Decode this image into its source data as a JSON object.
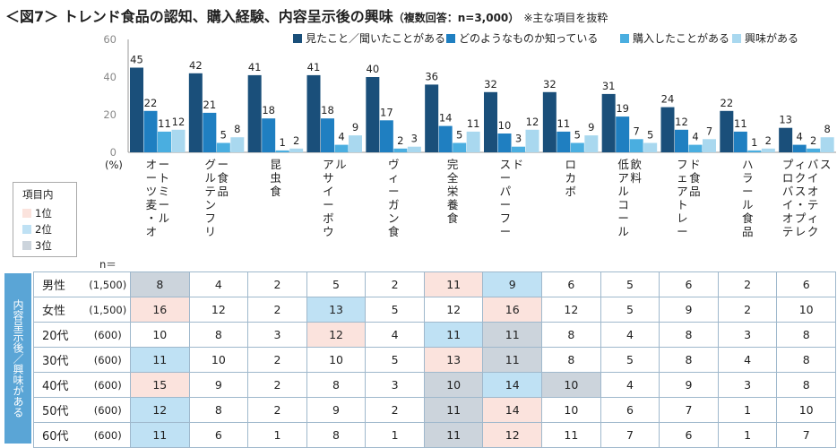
{
  "title": {
    "main": "＜図7＞ トレンド食品の認知、購入経験、内容呈示後の興味",
    "sub": "（複数回答：n=3,000）",
    "note": "※主な項目を抜粋"
  },
  "chart_data": {
    "type": "bar",
    "ylim": [
      0,
      60
    ],
    "yticks": [
      0,
      20,
      40,
      60
    ],
    "ylabel": "(%)",
    "grid": false,
    "legend_position": "top-right",
    "categories": [
      "オーツ麦・オートミール",
      "グルテンフリー食品",
      "昆虫食",
      "アサイーボウル",
      "ヴィーガン食",
      "完全栄養食",
      "スーパーフード",
      "ロカボ",
      "低アルコール飲料",
      "フェアトレード食品",
      "ハラール食品",
      "プロバイオティクス・プレバイオティクス"
    ],
    "series": [
      {
        "name": "見たこと／聞いたことがある",
        "color": "#1a4f7a",
        "values": [
          45,
          42,
          41,
          41,
          40,
          36,
          32,
          32,
          31,
          24,
          22,
          13
        ]
      },
      {
        "name": "どのようなものか知っている",
        "color": "#1f7fc1",
        "values": [
          22,
          21,
          18,
          18,
          17,
          14,
          10,
          11,
          19,
          12,
          11,
          4
        ]
      },
      {
        "name": "購入したことがある",
        "color": "#4aaee0",
        "values": [
          11,
          5,
          1,
          4,
          2,
          5,
          3,
          5,
          7,
          4,
          1,
          2
        ]
      },
      {
        "name": "興味がある",
        "color": "#a9d8ef",
        "values": [
          12,
          8,
          2,
          9,
          3,
          11,
          12,
          9,
          5,
          7,
          2,
          8
        ]
      }
    ]
  },
  "key": {
    "title": "項目内",
    "ranks": [
      "1位",
      "2位",
      "3位"
    ],
    "colors": [
      "#fbe3dd",
      "#bfe1f4",
      "#ccd4dc"
    ]
  },
  "table": {
    "n_label": "n＝",
    "side_label": "内容呈示後／興味がある",
    "rows": [
      {
        "group": "男性",
        "n": "(1,500)",
        "values": [
          8,
          4,
          2,
          5,
          2,
          11,
          9,
          6,
          5,
          6,
          2,
          6
        ],
        "ranks": [
          3,
          0,
          0,
          0,
          0,
          1,
          2,
          0,
          0,
          0,
          0,
          0
        ]
      },
      {
        "group": "女性",
        "n": "(1,500)",
        "values": [
          16,
          12,
          2,
          13,
          5,
          12,
          16,
          12,
          5,
          9,
          2,
          10
        ],
        "ranks": [
          1,
          0,
          0,
          2,
          0,
          0,
          1,
          0,
          0,
          0,
          0,
          0
        ]
      },
      {
        "group": "20代",
        "n": "(600)",
        "values": [
          10,
          8,
          3,
          12,
          4,
          11,
          11,
          8,
          4,
          8,
          3,
          8
        ],
        "ranks": [
          0,
          0,
          0,
          1,
          0,
          2,
          3,
          0,
          0,
          0,
          0,
          0
        ]
      },
      {
        "group": "30代",
        "n": "(600)",
        "values": [
          11,
          10,
          2,
          10,
          5,
          13,
          11,
          8,
          5,
          8,
          4,
          8
        ],
        "ranks": [
          2,
          0,
          0,
          0,
          0,
          1,
          3,
          0,
          0,
          0,
          0,
          0
        ]
      },
      {
        "group": "40代",
        "n": "(600)",
        "values": [
          15,
          9,
          2,
          8,
          3,
          10,
          14,
          10,
          4,
          9,
          3,
          8
        ],
        "ranks": [
          1,
          0,
          0,
          0,
          0,
          3,
          2,
          3,
          0,
          0,
          0,
          0
        ]
      },
      {
        "group": "50代",
        "n": "(600)",
        "values": [
          12,
          8,
          2,
          9,
          2,
          11,
          14,
          10,
          6,
          7,
          1,
          10
        ],
        "ranks": [
          2,
          0,
          0,
          0,
          0,
          3,
          1,
          0,
          0,
          0,
          0,
          0
        ]
      },
      {
        "group": "60代",
        "n": "(600)",
        "values": [
          11,
          6,
          1,
          8,
          1,
          11,
          12,
          11,
          7,
          6,
          1,
          7
        ],
        "ranks": [
          2,
          0,
          0,
          0,
          0,
          3,
          1,
          0,
          0,
          0,
          0,
          0
        ]
      }
    ]
  }
}
